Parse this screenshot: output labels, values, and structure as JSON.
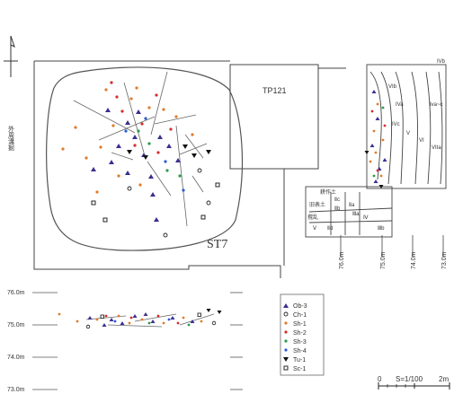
{
  "plan": {
    "pit_label": "ST7",
    "test_pit_label": "TP121",
    "side_text": "外周溝掘"
  },
  "elevation_axis": {
    "left_ticks": [
      "76.0m",
      "75.0m",
      "74.0m",
      "73.0m"
    ],
    "section_ticks": [
      "76.0m",
      "75.0m",
      "74.0m",
      "73.0m"
    ]
  },
  "section": {
    "layers_upper": [
      "IVb",
      "VIb",
      "IVa",
      "Iva~c",
      "IVc",
      "V",
      "VI",
      "VIIa"
    ],
    "layers_lower": [
      "Ⅱc",
      "Ⅱb",
      "Ⅱa",
      "Ⅳ",
      "Ⅴ",
      "Ⅱd",
      "Ⅲa",
      "Ⅲb"
    ],
    "notes": [
      "撹乱",
      "耕作土",
      "旧表土"
    ]
  },
  "legend": {
    "items": [
      {
        "symbol": "triangle",
        "label": "Ob-3",
        "color": "#3a2f8f"
      },
      {
        "symbol": "circle-open",
        "label": "Ch-1",
        "color": "#222222"
      },
      {
        "symbol": "dot",
        "label": "Sh-1",
        "color": "#e07b2a"
      },
      {
        "symbol": "dot",
        "label": "Sh-2",
        "color": "#d42d2d"
      },
      {
        "symbol": "dot",
        "label": "Sh-3",
        "color": "#2e9a4a"
      },
      {
        "symbol": "dot",
        "label": "Sh-4",
        "color": "#2a5bd4"
      },
      {
        "symbol": "triangle-down",
        "label": "Tu-1",
        "color": "#111111"
      },
      {
        "symbol": "square-open",
        "label": "Sc-1",
        "color": "#111111"
      }
    ]
  },
  "scale": {
    "label": "S=1/100",
    "start": "0",
    "end": "2m"
  }
}
